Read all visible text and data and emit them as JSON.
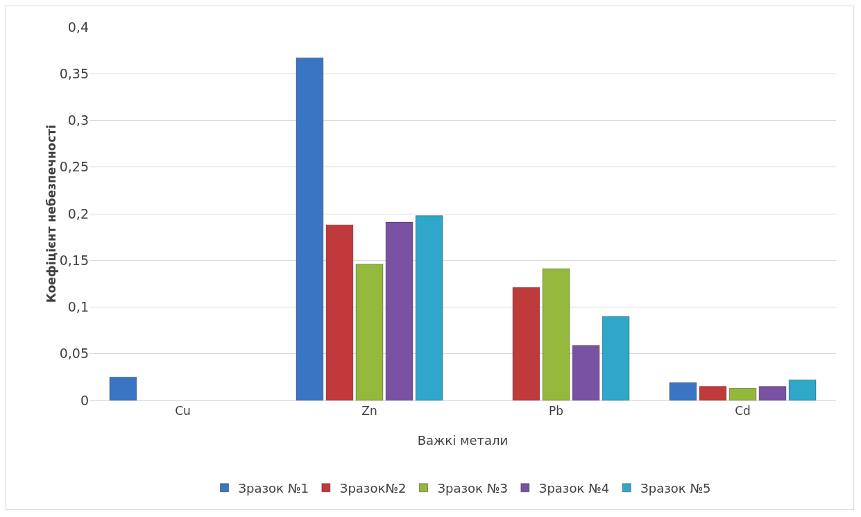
{
  "chart_data": {
    "type": "bar",
    "xlabel": "Важкі метали",
    "ylabel": "Коефіцієнт небезпечності",
    "categories": [
      "Cu",
      "Zn",
      "Pb",
      "Cd"
    ],
    "series": [
      {
        "name": "Зразок №1",
        "color": "#3a75c4",
        "values": [
          0.025,
          0.367,
          null,
          0.019
        ]
      },
      {
        "name": "Зразок№2",
        "color": "#c0393b",
        "values": [
          null,
          0.188,
          0.121,
          0.015
        ]
      },
      {
        "name": "Зразок №3",
        "color": "#93b83c",
        "values": [
          null,
          0.146,
          0.141,
          0.013
        ]
      },
      {
        "name": "Зразок №4",
        "color": "#7a52a3",
        "values": [
          null,
          0.191,
          0.059,
          0.015
        ]
      },
      {
        "name": "Зразок №5",
        "color": "#2ea7c9",
        "values": [
          null,
          0.198,
          0.09,
          0.022
        ]
      }
    ],
    "ylim": [
      0,
      0.4
    ],
    "yticks": [
      0,
      {
        "value": 0.05,
        "label": "0,05"
      },
      {
        "value": 0.1,
        "label": "0,1"
      },
      {
        "value": 0.15,
        "label": "0,15"
      },
      {
        "value": 0.2,
        "label": "0,2"
      },
      {
        "value": 0.25,
        "label": "0,25"
      },
      {
        "value": 0.3,
        "label": "0,3"
      },
      {
        "value": 0.35,
        "label": "0,35"
      },
      {
        "value": 0.4,
        "label": "0,4"
      }
    ],
    "grid": "y",
    "legend": "bottom"
  }
}
